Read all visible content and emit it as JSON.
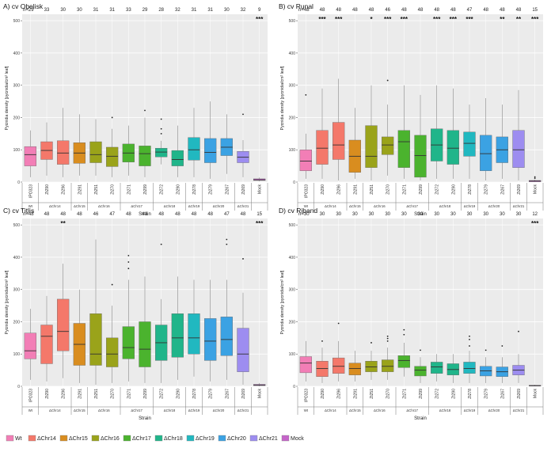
{
  "figure": {
    "legend": [
      {
        "label": "Wt",
        "color": "#F27EB6"
      },
      {
        "label": "ΔChr14",
        "color": "#F4786A"
      },
      {
        "label": "ΔChr15",
        "color": "#D98D1F"
      },
      {
        "label": "ΔChr16",
        "color": "#9AA31A"
      },
      {
        "label": "ΔChr17",
        "color": "#4BB32E"
      },
      {
        "label": "ΔChr18",
        "color": "#20B58A"
      },
      {
        "label": "ΔChr19",
        "color": "#21B8C0"
      },
      {
        "label": "ΔChr20",
        "color": "#3BA2E3"
      },
      {
        "label": "ΔChr21",
        "color": "#9D8DF0"
      },
      {
        "label": "Mock",
        "color": "#C564C9"
      }
    ]
  },
  "chart_data": [
    {
      "type": "box",
      "title": "A) cv Obelisk",
      "ylabel": "Pycnidia density [pycnidia/cm² leaf]",
      "xlabel": "Strain",
      "ylim": [
        0,
        520
      ],
      "yticks": [
        0,
        100,
        200,
        300,
        400,
        500
      ],
      "grid": true,
      "categories": [
        "IPO323",
        "Zt290",
        "Zt296",
        "Zt291",
        "Zt251",
        "Zt270",
        "Zt271",
        "Zt299",
        "Zt272",
        "Zt290",
        "Zt278",
        "Zt279",
        "Zt267",
        "Zt269",
        "Mock"
      ],
      "n_label": "n=",
      "counts": [
        "29",
        "33",
        "30",
        "30",
        "31",
        "31",
        "33",
        "29",
        "28",
        "32",
        "31",
        "31",
        "30",
        "32",
        "9"
      ],
      "significance": [
        "",
        "",
        "",
        "",
        "",
        "",
        "",
        "",
        "",
        "",
        "",
        "",
        "",
        "",
        "***"
      ],
      "group_labels": [
        "Wt",
        "ΔChr14",
        "",
        "ΔChr15",
        "ΔChr16",
        "",
        "ΔChr17",
        "",
        "ΔChr18",
        "",
        "ΔChr19",
        "ΔChr20",
        "",
        "ΔChr21",
        ""
      ],
      "boxes": [
        {
          "min": 15,
          "q1": 50,
          "median": 85,
          "q3": 110,
          "max": 160,
          "outliers": []
        },
        {
          "min": 20,
          "q1": 70,
          "median": 98,
          "q3": 125,
          "max": 185,
          "outliers": []
        },
        {
          "min": 15,
          "q1": 55,
          "median": 90,
          "q3": 128,
          "max": 230,
          "outliers": []
        },
        {
          "min": 20,
          "q1": 58,
          "median": 90,
          "q3": 122,
          "max": 210,
          "outliers": []
        },
        {
          "min": 20,
          "q1": 60,
          "median": 85,
          "q3": 125,
          "max": 195,
          "outliers": []
        },
        {
          "min": 15,
          "q1": 48,
          "median": 80,
          "q3": 108,
          "max": 165,
          "outliers": [
            200
          ]
        },
        {
          "min": 20,
          "q1": 62,
          "median": 90,
          "q3": 118,
          "max": 175,
          "outliers": []
        },
        {
          "min": 15,
          "q1": 50,
          "median": 88,
          "q3": 112,
          "max": 200,
          "outliers": [
            222
          ]
        },
        {
          "min": 55,
          "q1": 78,
          "median": 93,
          "q3": 105,
          "max": 128,
          "outliers": [
            150,
            165,
            195
          ]
        },
        {
          "min": 15,
          "q1": 50,
          "median": 70,
          "q3": 98,
          "max": 175,
          "outliers": []
        },
        {
          "min": 15,
          "q1": 68,
          "median": 100,
          "q3": 138,
          "max": 230,
          "outliers": []
        },
        {
          "min": 10,
          "q1": 60,
          "median": 92,
          "q3": 135,
          "max": 250,
          "outliers": []
        },
        {
          "min": 25,
          "q1": 82,
          "median": 108,
          "q3": 135,
          "max": 210,
          "outliers": []
        },
        {
          "min": 15,
          "q1": 60,
          "median": 77,
          "q3": 95,
          "max": 130,
          "outliers": [
            210
          ]
        },
        {
          "min": 2,
          "q1": 5,
          "median": 7,
          "q3": 10,
          "max": 14,
          "outliers": []
        }
      ]
    },
    {
      "type": "box",
      "title": "B) cv Runal",
      "ylabel": "Pycnidia density [pycnidia/cm² leaf]",
      "xlabel": "Strain",
      "ylim": [
        0,
        520
      ],
      "yticks": [
        0,
        100,
        200,
        300,
        400,
        500
      ],
      "grid": true,
      "categories": [
        "IPO323",
        "Zt290",
        "Zt296",
        "Zt291",
        "Zt251",
        "Zt270",
        "Zt271",
        "Zt299",
        "Zt272",
        "Zt290",
        "Zt278",
        "Zt279",
        "Zt267",
        "Zt269",
        "Mock"
      ],
      "n_label": "n=",
      "counts": [
        "48",
        "48",
        "48",
        "48",
        "48",
        "46",
        "48",
        "48",
        "48",
        "48",
        "47",
        "48",
        "48",
        "48",
        "15"
      ],
      "significance": [
        "",
        "***",
        "***",
        "",
        "*",
        "***",
        "***",
        "",
        "***",
        "***",
        "***",
        "",
        "**",
        "**",
        "***"
      ],
      "group_labels": [
        "Wt",
        "ΔChr14",
        "",
        "ΔChr15",
        "ΔChr16",
        "",
        "ΔChr17",
        "",
        "ΔChr18",
        "",
        "ΔChr19",
        "ΔChr20",
        "",
        "ΔChr21",
        ""
      ],
      "boxes": [
        {
          "min": 10,
          "q1": 35,
          "median": 65,
          "q3": 100,
          "max": 150,
          "outliers": [
            270
          ]
        },
        {
          "min": 10,
          "q1": 55,
          "median": 105,
          "q3": 160,
          "max": 290,
          "outliers": []
        },
        {
          "min": 5,
          "q1": 70,
          "median": 115,
          "q3": 185,
          "max": 320,
          "outliers": []
        },
        {
          "min": 10,
          "q1": 30,
          "median": 80,
          "q3": 130,
          "max": 230,
          "outliers": []
        },
        {
          "min": 5,
          "q1": 45,
          "median": 80,
          "q3": 175,
          "max": 300,
          "outliers": []
        },
        {
          "min": 20,
          "q1": 85,
          "median": 115,
          "q3": 140,
          "max": 240,
          "outliers": [
            315
          ]
        },
        {
          "min": 10,
          "q1": 45,
          "median": 125,
          "q3": 160,
          "max": 300,
          "outliers": []
        },
        {
          "min": 5,
          "q1": 15,
          "median": 82,
          "q3": 145,
          "max": 270,
          "outliers": []
        },
        {
          "min": 10,
          "q1": 65,
          "median": 115,
          "q3": 165,
          "max": 300,
          "outliers": []
        },
        {
          "min": 10,
          "q1": 55,
          "median": 105,
          "q3": 160,
          "max": 290,
          "outliers": []
        },
        {
          "min": 10,
          "q1": 80,
          "median": 120,
          "q3": 155,
          "max": 240,
          "outliers": []
        },
        {
          "min": 5,
          "q1": 35,
          "median": 88,
          "q3": 145,
          "max": 260,
          "outliers": []
        },
        {
          "min": 10,
          "q1": 60,
          "median": 100,
          "q3": 140,
          "max": 240,
          "outliers": []
        },
        {
          "min": 5,
          "q1": 45,
          "median": 100,
          "q3": 160,
          "max": 285,
          "outliers": []
        },
        {
          "min": 0,
          "q1": 1,
          "median": 3,
          "q3": 5,
          "max": 8,
          "outliers": [
            12,
            16
          ]
        }
      ]
    },
    {
      "type": "box",
      "title": "C) cv Titlis",
      "ylabel": "Pycnidia density [pycnidia/cm² leaf]",
      "xlabel": "Strain",
      "ylim": [
        0,
        520
      ],
      "yticks": [
        0,
        100,
        200,
        300,
        400,
        500
      ],
      "grid": true,
      "categories": [
        "IPO323",
        "Zt290",
        "Zt296",
        "Zt291",
        "Zt251",
        "Zt270",
        "Zt271",
        "Zt299",
        "Zt272",
        "Zt290",
        "Zt278",
        "Zt279",
        "Zt267",
        "Zt269",
        "Mock"
      ],
      "n_label": "n=",
      "counts": [
        "48",
        "48",
        "48",
        "48",
        "46",
        "47",
        "48",
        "48",
        "48",
        "48",
        "48",
        "48",
        "47",
        "48",
        "15"
      ],
      "significance": [
        "",
        "",
        "**",
        "",
        "",
        "",
        "",
        "",
        "",
        "",
        "",
        "",
        "",
        "",
        "***"
      ],
      "group_labels": [
        "Wt",
        "ΔChr14",
        "",
        "ΔChr15",
        "ΔChr16",
        "",
        "ΔChr17",
        "",
        "ΔChr18",
        "",
        "ΔChr19",
        "ΔChr20",
        "",
        "ΔChr21",
        ""
      ],
      "boxes": [
        {
          "min": 20,
          "q1": 85,
          "median": 110,
          "q3": 165,
          "max": 240,
          "outliers": []
        },
        {
          "min": 15,
          "q1": 70,
          "median": 155,
          "q3": 190,
          "max": 280,
          "outliers": []
        },
        {
          "min": 25,
          "q1": 110,
          "median": 170,
          "q3": 270,
          "max": 380,
          "outliers": []
        },
        {
          "min": 10,
          "q1": 65,
          "median": 130,
          "q3": 195,
          "max": 300,
          "outliers": []
        },
        {
          "min": 5,
          "q1": 65,
          "median": 100,
          "q3": 225,
          "max": 455,
          "outliers": []
        },
        {
          "min": 10,
          "q1": 60,
          "median": 100,
          "q3": 150,
          "max": 250,
          "outliers": [
            315
          ]
        },
        {
          "min": 15,
          "q1": 85,
          "median": 120,
          "q3": 185,
          "max": 330,
          "outliers": [
            365,
            385,
            405
          ]
        },
        {
          "min": 10,
          "q1": 60,
          "median": 115,
          "q3": 200,
          "max": 340,
          "outliers": []
        },
        {
          "min": 10,
          "q1": 80,
          "median": 135,
          "q3": 190,
          "max": 270,
          "outliers": [
            440
          ]
        },
        {
          "min": 20,
          "q1": 90,
          "median": 150,
          "q3": 225,
          "max": 340,
          "outliers": []
        },
        {
          "min": 30,
          "q1": 100,
          "median": 150,
          "q3": 225,
          "max": 330,
          "outliers": []
        },
        {
          "min": 15,
          "q1": 80,
          "median": 140,
          "q3": 210,
          "max": 330,
          "outliers": []
        },
        {
          "min": 20,
          "q1": 95,
          "median": 145,
          "q3": 215,
          "max": 330,
          "outliers": [
            440,
            455
          ]
        },
        {
          "min": 5,
          "q1": 45,
          "median": 100,
          "q3": 180,
          "max": 290,
          "outliers": [
            395
          ]
        },
        {
          "min": 0,
          "q1": 2,
          "median": 4,
          "q3": 6,
          "max": 10,
          "outliers": []
        }
      ]
    },
    {
      "type": "box",
      "title": "D) cv Riband",
      "ylabel": "Pycnidia density [pycnidia/cm² leaf]",
      "xlabel": "Strain",
      "ylim": [
        0,
        520
      ],
      "yticks": [
        0,
        100,
        200,
        300,
        400,
        500
      ],
      "grid": true,
      "categories": [
        "IPO323",
        "Zt290",
        "Zt296",
        "Zt291",
        "Zt251",
        "Zt270",
        "Zt271",
        "Zt299",
        "Zt272",
        "Zt290",
        "Zt278",
        "Zt279",
        "Zt267",
        "Zt269",
        "Mock"
      ],
      "n_label": "n=",
      "counts": [
        "30",
        "30",
        "30",
        "30",
        "30",
        "30",
        "30",
        "30",
        "30",
        "30",
        "30",
        "30",
        "30",
        "30",
        "12"
      ],
      "significance": [
        "",
        "",
        "",
        "",
        "",
        "",
        "",
        "",
        "",
        "",
        "",
        "",
        "",
        "",
        "***"
      ],
      "group_labels": [
        "Wt",
        "ΔChr14",
        "",
        "ΔChr15",
        "ΔChr16",
        "",
        "ΔChr17",
        "",
        "ΔChr18",
        "",
        "ΔChr19",
        "ΔChr20",
        "",
        "ΔChr21",
        ""
      ],
      "boxes": [
        {
          "min": 15,
          "q1": 42,
          "median": 72,
          "q3": 92,
          "max": 140,
          "outliers": []
        },
        {
          "min": 10,
          "q1": 30,
          "median": 55,
          "q3": 78,
          "max": 120,
          "outliers": [
            140
          ]
        },
        {
          "min": 15,
          "q1": 40,
          "median": 62,
          "q3": 88,
          "max": 140,
          "outliers": [
            195
          ]
        },
        {
          "min": 15,
          "q1": 35,
          "median": 55,
          "q3": 72,
          "max": 110,
          "outliers": []
        },
        {
          "min": 20,
          "q1": 45,
          "median": 60,
          "q3": 78,
          "max": 110,
          "outliers": [
            135
          ]
        },
        {
          "min": 20,
          "q1": 45,
          "median": 62,
          "q3": 82,
          "max": 120,
          "outliers": [
            140,
            148,
            155
          ]
        },
        {
          "min": 30,
          "q1": 58,
          "median": 80,
          "q3": 95,
          "max": 135,
          "outliers": [
            160,
            175
          ]
        },
        {
          "min": 10,
          "q1": 32,
          "median": 50,
          "q3": 62,
          "max": 90,
          "outliers": [
            112
          ]
        },
        {
          "min": 15,
          "q1": 40,
          "median": 60,
          "q3": 75,
          "max": 100,
          "outliers": []
        },
        {
          "min": 10,
          "q1": 35,
          "median": 52,
          "q3": 70,
          "max": 100,
          "outliers": []
        },
        {
          "min": 10,
          "q1": 40,
          "median": 55,
          "q3": 75,
          "max": 110,
          "outliers": [
            125,
            145,
            155
          ]
        },
        {
          "min": 10,
          "q1": 32,
          "median": 48,
          "q3": 62,
          "max": 90,
          "outliers": [
            112
          ]
        },
        {
          "min": 10,
          "q1": 30,
          "median": 45,
          "q3": 60,
          "max": 90,
          "outliers": [
            125
          ]
        },
        {
          "min": 10,
          "q1": 35,
          "median": 50,
          "q3": 65,
          "max": 100,
          "outliers": [
            170
          ]
        },
        {
          "min": 0,
          "q1": 1,
          "median": 2,
          "q3": 3,
          "max": 5,
          "outliers": []
        }
      ]
    }
  ]
}
